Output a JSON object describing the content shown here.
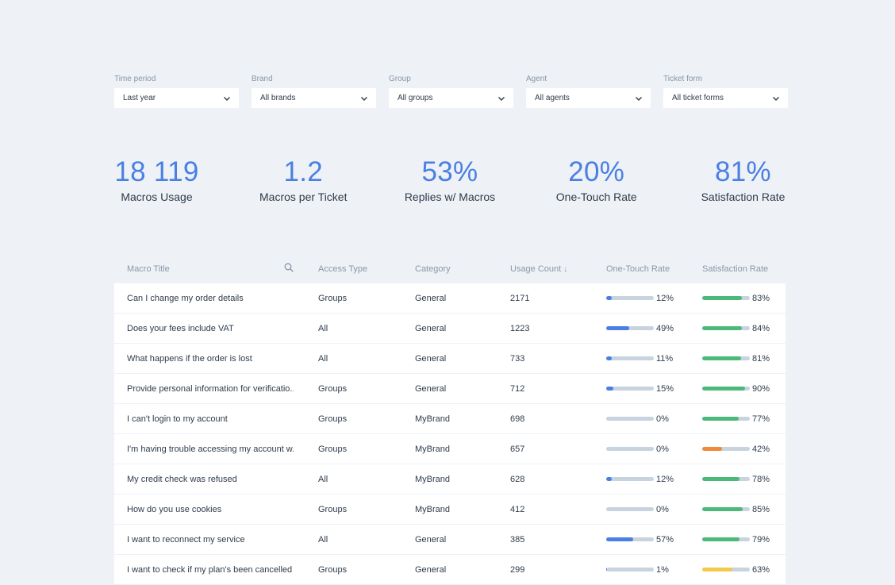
{
  "filters": [
    {
      "label": "Time period",
      "value": "Last year"
    },
    {
      "label": "Brand",
      "value": "All brands"
    },
    {
      "label": "Group",
      "value": "All groups"
    },
    {
      "label": "Agent",
      "value": "All agents"
    },
    {
      "label": "Ticket form",
      "value": "All ticket forms"
    }
  ],
  "kpis": [
    {
      "value": "18 119",
      "label": "Macros Usage"
    },
    {
      "value": "1.2",
      "label": "Macros per Ticket"
    },
    {
      "value": "53%",
      "label": "Replies w/ Macros"
    },
    {
      "value": "20%",
      "label": "One-Touch Rate"
    },
    {
      "value": "81%",
      "label": "Satisfaction Rate"
    }
  ],
  "table": {
    "headers": [
      "Macro Title",
      "Access Type",
      "Category",
      "Usage Count",
      "One-Touch Rate",
      "Satisfaction Rate"
    ],
    "sort_arrow": "↓",
    "rows": [
      {
        "title": "Can I change my order details",
        "access": "Groups",
        "category": "General",
        "usage": "2171",
        "one_touch": 12,
        "one_touch_label": "12%",
        "satisfaction": 83,
        "satisfaction_label": "83%",
        "sat_color": "green"
      },
      {
        "title": "Does your fees include VAT",
        "access": "All",
        "category": "General",
        "usage": "1223",
        "one_touch": 49,
        "one_touch_label": "49%",
        "satisfaction": 84,
        "satisfaction_label": "84%",
        "sat_color": "green"
      },
      {
        "title": "What happens if the order is lost",
        "access": "All",
        "category": "General",
        "usage": "733",
        "one_touch": 11,
        "one_touch_label": "11%",
        "satisfaction": 81,
        "satisfaction_label": "81%",
        "sat_color": "green"
      },
      {
        "title": "Provide personal information for verificatio...",
        "access": "Groups",
        "category": "General",
        "usage": "712",
        "one_touch": 15,
        "one_touch_label": "15%",
        "satisfaction": 90,
        "satisfaction_label": "90%",
        "sat_color": "green"
      },
      {
        "title": "I can't login to my account",
        "access": "Groups",
        "category": "MyBrand",
        "usage": "698",
        "one_touch": 0,
        "one_touch_label": "0%",
        "satisfaction": 77,
        "satisfaction_label": "77%",
        "sat_color": "green"
      },
      {
        "title": "I'm having trouble accessing my account w...",
        "access": "Groups",
        "category": "MyBrand",
        "usage": "657",
        "one_touch": 0,
        "one_touch_label": "0%",
        "satisfaction": 42,
        "satisfaction_label": "42%",
        "sat_color": "orange"
      },
      {
        "title": "My credit check was refused",
        "access": "All",
        "category": "MyBrand",
        "usage": "628",
        "one_touch": 12,
        "one_touch_label": "12%",
        "satisfaction": 78,
        "satisfaction_label": "78%",
        "sat_color": "green"
      },
      {
        "title": "How do you use cookies",
        "access": "Groups",
        "category": "MyBrand",
        "usage": "412",
        "one_touch": 0,
        "one_touch_label": "0%",
        "satisfaction": 85,
        "satisfaction_label": "85%",
        "sat_color": "green"
      },
      {
        "title": "I want to reconnect my service",
        "access": "All",
        "category": "General",
        "usage": "385",
        "one_touch": 57,
        "one_touch_label": "57%",
        "satisfaction": 79,
        "satisfaction_label": "79%",
        "sat_color": "green"
      },
      {
        "title": "I want to check if my plan's been cancelled",
        "access": "Groups",
        "category": "General",
        "usage": "299",
        "one_touch": 1,
        "one_touch_label": "1%",
        "satisfaction": 63,
        "satisfaction_label": "63%",
        "sat_color": "yellow"
      }
    ]
  },
  "colors": {
    "accent": "#4a7fe3",
    "bar_track": "#c7d3de",
    "green": "#4cb97a",
    "orange": "#ef8a3b",
    "yellow": "#f2c94c",
    "page_bg": "#eef2f6"
  },
  "icons": {
    "search": "search-icon",
    "chevron": "chevron-down-icon"
  }
}
